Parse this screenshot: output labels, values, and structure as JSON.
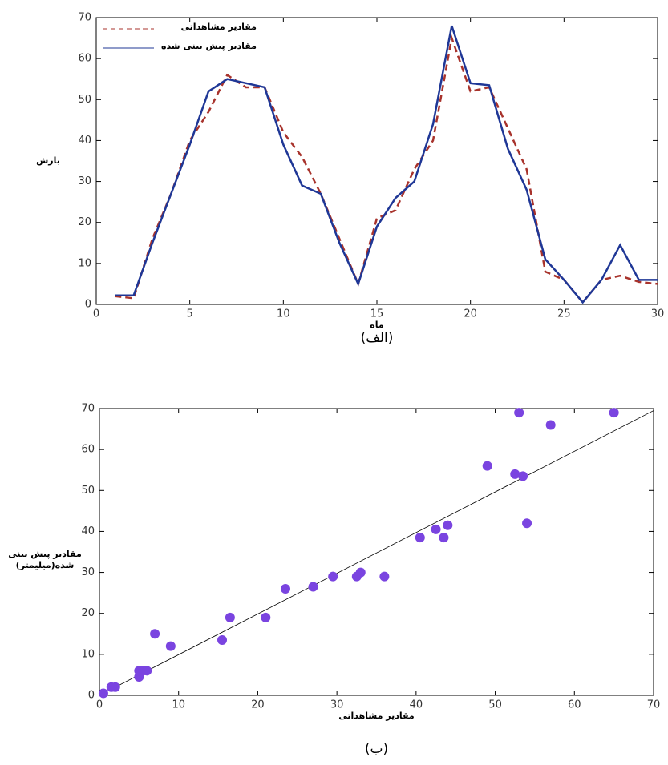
{
  "chart_data": [
    {
      "type": "line",
      "caption": "(الف)",
      "xlabel": "ماه",
      "ylabel": "بارش",
      "x": [
        1,
        2,
        3,
        4,
        5,
        6,
        7,
        8,
        9,
        10,
        11,
        12,
        13,
        14,
        15,
        16,
        17,
        18,
        19,
        20,
        21,
        22,
        23,
        24,
        25,
        26,
        27,
        28,
        29,
        30
      ],
      "series": [
        {
          "name": "مقادیر مشاهداتی",
          "color": "#a8332c",
          "dash": true,
          "values": [
            2,
            1.5,
            16,
            27,
            40,
            47,
            56,
            53,
            53,
            42,
            36,
            27,
            16,
            5,
            21,
            23,
            33,
            40,
            65,
            52,
            53,
            43,
            33,
            8,
            6,
            0.5,
            6,
            7,
            5.5,
            5
          ]
        },
        {
          "name": "مقادیر پیش بینی شده",
          "color": "#1f3796",
          "dash": false,
          "values": [
            2.2,
            2.2,
            15,
            27,
            39,
            52,
            55,
            54,
            53,
            39,
            29,
            27,
            15,
            5,
            19,
            26,
            30,
            44,
            68,
            54,
            53.5,
            38,
            28,
            11,
            6,
            0.5,
            6,
            14.5,
            6,
            6
          ]
        }
      ],
      "xlim": [
        0,
        30
      ],
      "ylim": [
        0,
        70
      ],
      "xticks": [
        0,
        5,
        10,
        15,
        20,
        25,
        30
      ],
      "yticks": [
        0,
        10,
        20,
        30,
        40,
        50,
        60,
        70
      ],
      "legend": "upper left"
    },
    {
      "type": "scatter",
      "caption": "(ب)",
      "xlabel": "مقادیر مشاهداتی",
      "ylabel": [
        "مقادیر پیش بینی",
        "شده(میلیمتر)"
      ],
      "color": "#7a44e0",
      "x": [
        0.5,
        1.5,
        2,
        5,
        5,
        5.5,
        6,
        7,
        9,
        15.5,
        16.5,
        21,
        23.5,
        27,
        29.5,
        32.5,
        33,
        36,
        40.5,
        42.5,
        43.5,
        44,
        49,
        52.5,
        53,
        53.5,
        54,
        57,
        65
      ],
      "y": [
        0.5,
        2,
        2,
        6,
        4.5,
        6,
        6,
        15,
        12,
        13.5,
        19,
        19,
        26,
        26.5,
        29,
        29,
        30,
        29,
        38.5,
        40.5,
        38.5,
        41.5,
        56,
        54,
        69,
        53.5,
        42,
        66,
        69
      ],
      "trendline": {
        "x": [
          0,
          70
        ],
        "y": [
          0,
          69.5
        ]
      },
      "xlim": [
        0,
        70
      ],
      "ylim": [
        0,
        70
      ],
      "xticks": [
        0,
        10,
        20,
        30,
        40,
        50,
        60,
        70
      ],
      "yticks": [
        0,
        10,
        20,
        30,
        40,
        50,
        60,
        70
      ]
    }
  ]
}
